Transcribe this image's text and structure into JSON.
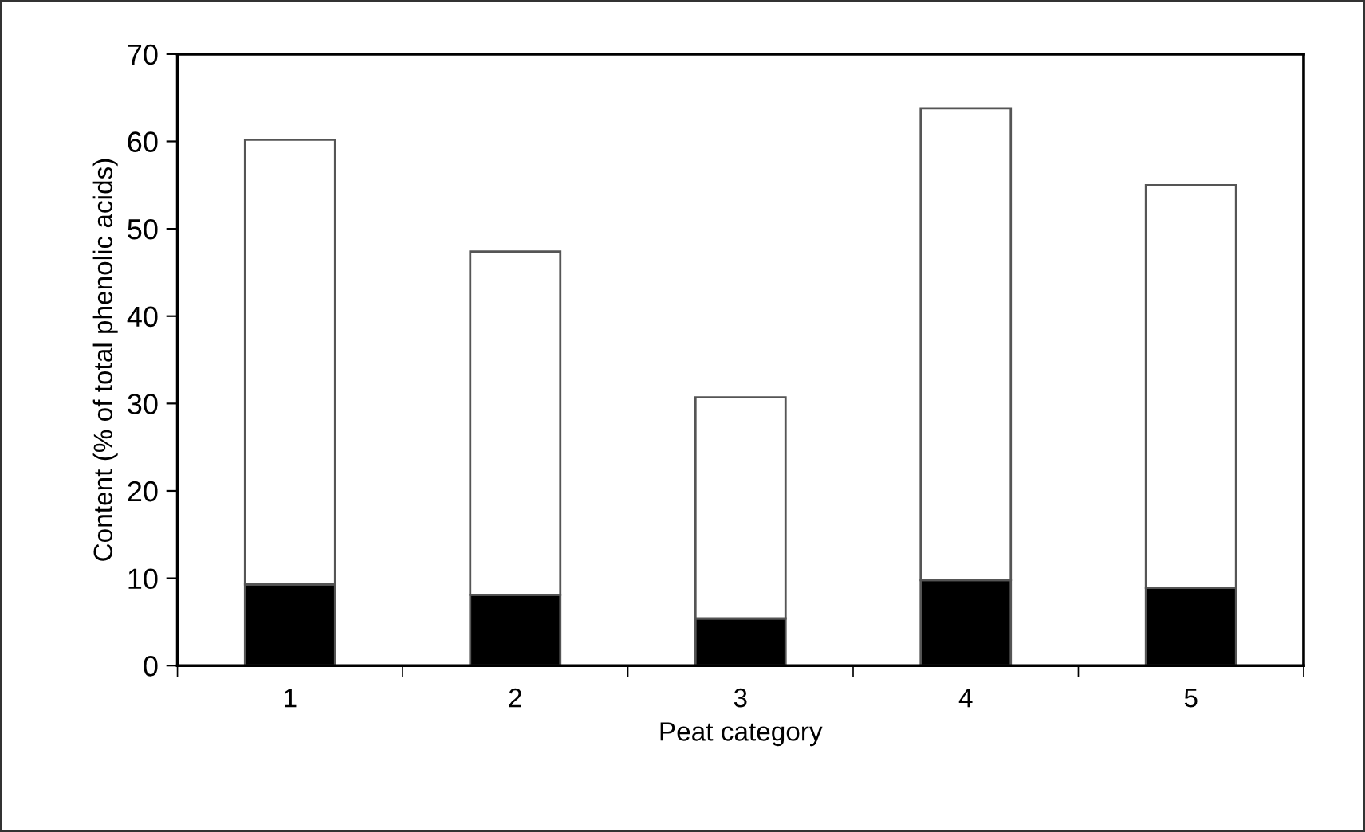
{
  "chart_data": {
    "type": "bar",
    "stacked": true,
    "xlabel": "Peat category",
    "ylabel": "Content (% of total phenolic acids)",
    "categories": [
      "1",
      "2",
      "3",
      "4",
      "5"
    ],
    "series": [
      {
        "color": "#000000",
        "values": [
          9.3,
          8.1,
          5.4,
          9.8,
          8.9
        ]
      },
      {
        "color": "#ffffff",
        "values": [
          50.9,
          39.3,
          25.3,
          54.0,
          46.1
        ]
      }
    ],
    "ylim": [
      0,
      70
    ],
    "yticks": [
      0,
      10,
      20,
      30,
      40,
      50,
      60,
      70
    ],
    "grid": false,
    "legend": false
  }
}
